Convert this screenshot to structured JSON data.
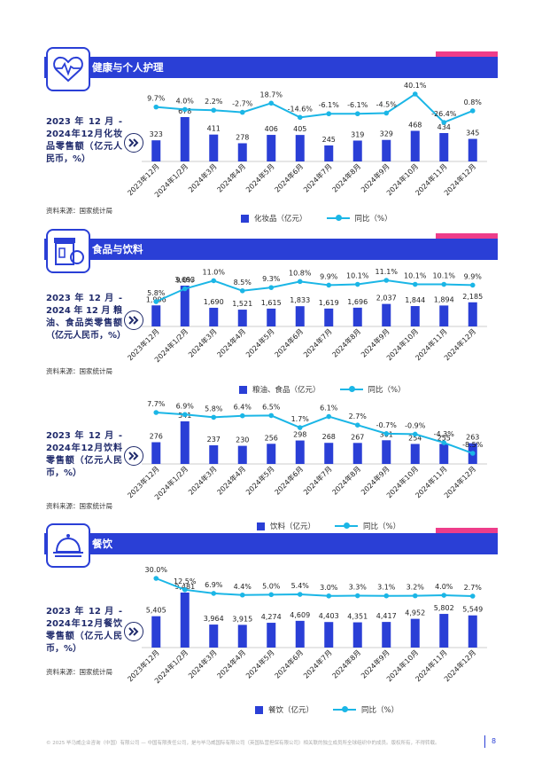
{
  "sections": [
    {
      "title": "健康与个人护理",
      "icon": "cosmetics-heart-icon"
    },
    {
      "title": "食品与饮料",
      "icon": "grocery-icon"
    },
    {
      "title": "餐饮",
      "icon": "food-cloche-icon"
    }
  ],
  "source_label": "资料来源：国家统计局",
  "footer_text": "© 2025 毕马威企业咨询（中国）有限公司 — 中国有限责任公司，是与毕马威国际有限公司（英国私营担保有限公司）相关联的独立成员所全球组织中的成员。版权所有，不得转载。",
  "page_number": "8",
  "colors": {
    "bar": "#2a3fd6",
    "line": "#1bb6e6",
    "accent": "#ee3d8a",
    "title": "#1f2a6b"
  },
  "chart_data": [
    {
      "type": "bar",
      "description": "2023 年 12 月 - 2024年12月化妆品零售额（亿元人民币，%）",
      "categories": [
        "2023年12月",
        "2024年1/2月",
        "2024年3月",
        "2024年4月",
        "2024年5月",
        "2024年6月",
        "2024年7月",
        "2024年8月",
        "2024年9月",
        "2024年10月",
        "2024年11月",
        "2024年12月"
      ],
      "series": [
        {
          "name": "化妆品（亿元）",
          "kind": "bar",
          "values": [
            323,
            678,
            411,
            278,
            406,
            405,
            245,
            319,
            329,
            468,
            434,
            345
          ],
          "labels": [
            "323",
            "678",
            "411",
            "278",
            "406",
            "405",
            "245",
            "319",
            "329",
            "468",
            "434",
            "345"
          ]
        },
        {
          "name": "同比（%）",
          "kind": "line",
          "values": [
            9.7,
            4.0,
            2.2,
            -2.7,
            18.7,
            -14.6,
            -6.1,
            -6.1,
            -4.5,
            40.1,
            -26.4,
            0.8
          ],
          "labels": [
            "9.7%",
            "4.0%",
            "2.2%",
            "-2.7%",
            "18.7%",
            "-14.6%",
            "-6.1%",
            "-6.1%",
            "-4.5%",
            "40.1%",
            "-26.4%",
            "0.8%"
          ]
        }
      ]
    },
    {
      "type": "bar",
      "description": "2023 年 12 月 - 2024年12月粮油、食品类零售额（亿元人民币，%）",
      "categories": [
        "2023年12月",
        "2024年1/2月",
        "2024年3月",
        "2024年4月",
        "2024年5月",
        "2024年6月",
        "2024年7月",
        "2024年8月",
        "2024年9月",
        "2024年10月",
        "2024年11月",
        "2024年12月"
      ],
      "series": [
        {
          "name": "粮油、食品（亿元）",
          "kind": "bar",
          "values": [
            1906,
            3693,
            1690,
            1521,
            1615,
            1833,
            1619,
            1696,
            2037,
            1844,
            1894,
            2185
          ],
          "labels": [
            "1,906",
            "3,693",
            "1,690",
            "1,521",
            "1,615",
            "1,833",
            "1,619",
            "1,696",
            "2,037",
            "1,844",
            "1,894",
            "2,185"
          ]
        },
        {
          "name": "同比（%）",
          "kind": "line",
          "values": [
            5.8,
            9.0,
            11.0,
            8.5,
            9.3,
            10.8,
            9.9,
            10.1,
            11.1,
            10.1,
            10.1,
            9.9
          ],
          "labels": [
            "5.8%",
            "9.0%",
            "11.0%",
            "8.5%",
            "9.3%",
            "10.8%",
            "9.9%",
            "10.1%",
            "11.1%",
            "10.1%",
            "10.1%",
            "9.9%"
          ]
        }
      ]
    },
    {
      "type": "bar",
      "description": "2023 年 12 月 - 2024年12月饮料零售额（亿元人民币，%）",
      "categories": [
        "2023年12月",
        "2024年1/2月",
        "2024年3月",
        "2024年4月",
        "2024年5月",
        "2024年6月",
        "2024年7月",
        "2024年8月",
        "2024年9月",
        "2024年10月",
        "2024年11月",
        "2024年12月"
      ],
      "series": [
        {
          "name": "饮料（亿元）",
          "kind": "bar",
          "values": [
            276,
            541,
            237,
            230,
            256,
            298,
            268,
            267,
            301,
            254,
            255,
            263
          ],
          "labels": [
            "276",
            "541",
            "237",
            "230",
            "256",
            "298",
            "268",
            "267",
            "301",
            "254",
            "255",
            "263"
          ]
        },
        {
          "name": "同比（%）",
          "kind": "line",
          "values": [
            7.7,
            6.9,
            5.8,
            6.4,
            6.5,
            1.7,
            6.1,
            2.7,
            -0.7,
            -0.9,
            -4.3,
            -8.5
          ],
          "labels": [
            "7.7%",
            "6.9%",
            "5.8%",
            "6.4%",
            "6.5%",
            "1.7%",
            "6.1%",
            "2.7%",
            "-0.7%",
            "-0.9%",
            "-4.3%",
            "-8.5%"
          ]
        }
      ]
    },
    {
      "type": "bar",
      "description": "2023 年 12 月 - 2024年12月餐饮零售额（亿元人民币，%）",
      "categories": [
        "2023年12月",
        "2024年1/2月",
        "2024年3月",
        "2024年4月",
        "2024年5月",
        "2024年6月",
        "2024年7月",
        "2024年8月",
        "2024年9月",
        "2024年10月",
        "2024年11月",
        "2024年12月"
      ],
      "series": [
        {
          "name": "餐饮（亿元）",
          "kind": "bar",
          "values": [
            5405,
            9481,
            3964,
            3915,
            4274,
            4609,
            4403,
            4351,
            4417,
            4952,
            5802,
            5549
          ],
          "labels": [
            "5,405",
            "9,481",
            "3,964",
            "3,915",
            "4,274",
            "4,609",
            "4,403",
            "4,351",
            "4,417",
            "4,952",
            "5,802",
            "5,549"
          ]
        },
        {
          "name": "同比（%）",
          "kind": "line",
          "values": [
            30.0,
            12.5,
            6.9,
            4.4,
            5.0,
            5.4,
            3.0,
            3.3,
            3.1,
            3.2,
            4.0,
            2.7
          ],
          "labels": [
            "30.0%",
            "12.5%",
            "6.9%",
            "4.4%",
            "5.0%",
            "5.4%",
            "3.0%",
            "3.3%",
            "3.1%",
            "3.2%",
            "4.0%",
            "2.7%"
          ]
        }
      ]
    }
  ]
}
